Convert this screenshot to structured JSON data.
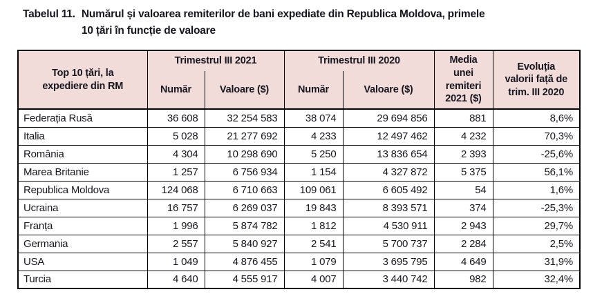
{
  "title": {
    "label": "Tabelul 11.",
    "line1": "Numărul și valoarea remiterilor de bani expediate din Republica Moldova, primele",
    "line2": "10 țări în funcție de valoare"
  },
  "table": {
    "header": {
      "col_country": "Top 10 țări, la expediere din RM",
      "group_2021": "Trimestrul III 2021",
      "group_2020": "Trimestrul III 2020",
      "numar_2021_label": "Număr",
      "valoare_2021_label": "Valoare ($)",
      "numar_2020_label": "Număr",
      "valoare_2020_label": "Valoare ($)",
      "col_media": "Media unei remiteri 2021 ($)",
      "col_evolutia": "Evoluția valorii față de trim. III 2020"
    },
    "rows": [
      {
        "country": "Federația Rusă",
        "numar_2021": "36 608",
        "valoare_2021": "32 254 583",
        "numar_2020": "38 074",
        "valoare_2020": "29 694 856",
        "media_2021": "881",
        "evolutia": "8,6%"
      },
      {
        "country": "Italia",
        "numar_2021": "5 028",
        "valoare_2021": "21 277 692",
        "numar_2020": "4 233",
        "valoare_2020": "12 497 462",
        "media_2021": "4 232",
        "evolutia": "70,3%"
      },
      {
        "country": "România",
        "numar_2021": "4 304",
        "valoare_2021": "10 298 690",
        "numar_2020": "5 250",
        "valoare_2020": "13 836 654",
        "media_2021": "2 393",
        "evolutia": "-25,6%"
      },
      {
        "country": "Marea Britanie",
        "numar_2021": "1 257",
        "valoare_2021": "6 756 934",
        "numar_2020": "1 154",
        "valoare_2020": "4 327 872",
        "media_2021": "5 375",
        "evolutia": "56,1%"
      },
      {
        "country": "Republica Moldova",
        "numar_2021": "124 068",
        "valoare_2021": "6 710 663",
        "numar_2020": "109 061",
        "valoare_2020": "6 605 492",
        "media_2021": "54",
        "evolutia": "1,6%"
      },
      {
        "country": "Ucraina",
        "numar_2021": "16 757",
        "valoare_2021": "6 269 037",
        "numar_2020": "19 843",
        "valoare_2020": "8 393 571",
        "media_2021": "374",
        "evolutia": "-25,3%"
      },
      {
        "country": "Franța",
        "numar_2021": "1 996",
        "valoare_2021": "5 874 782",
        "numar_2020": "1 812",
        "valoare_2020": "4 530 911",
        "media_2021": "2 943",
        "evolutia": "29,7%"
      },
      {
        "country": "Germania",
        "numar_2021": "2 557",
        "valoare_2021": "5 840 927",
        "numar_2020": "2 541",
        "valoare_2020": "5 700 737",
        "media_2021": "2 284",
        "evolutia": "2,5%"
      },
      {
        "country": "USA",
        "numar_2021": "1 049",
        "valoare_2021": "4 876 455",
        "numar_2020": "1 079",
        "valoare_2020": "3 695 795",
        "media_2021": "4 649",
        "evolutia": "31,9%"
      },
      {
        "country": "Turcia",
        "numar_2021": "4 640",
        "valoare_2021": "4 555 917",
        "numar_2020": "4 007",
        "valoare_2020": "3 440 742",
        "media_2021": "982",
        "evolutia": "32,4%"
      }
    ]
  },
  "colors": {
    "header_bg": "#f2dcda",
    "border": "#000000",
    "text": "#17171f",
    "title_text": "#16161f"
  }
}
